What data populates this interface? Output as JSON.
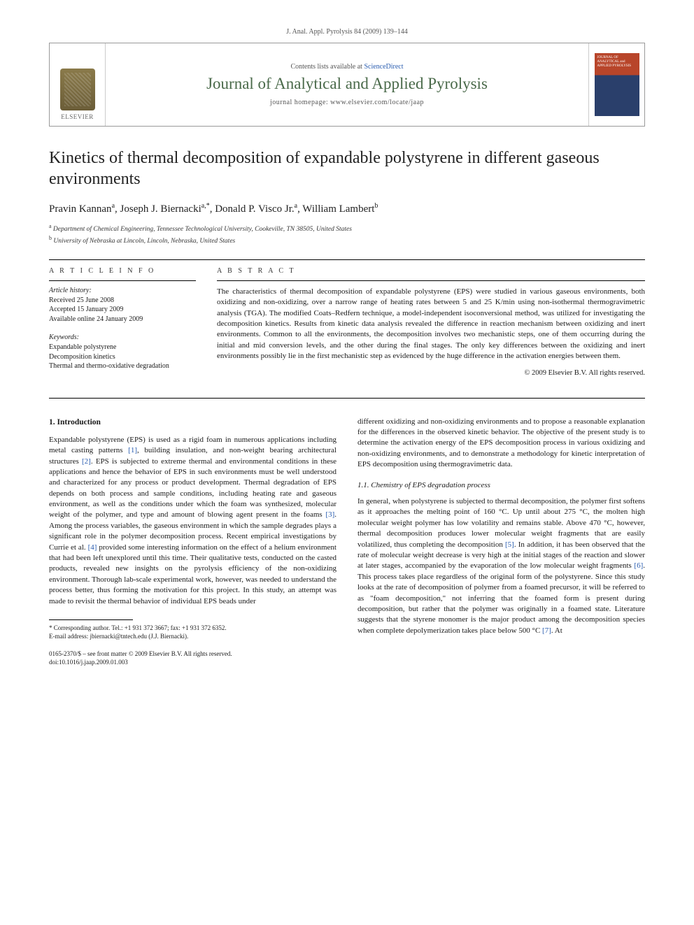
{
  "runningHead": "J. Anal. Appl. Pyrolysis 84 (2009) 139–144",
  "header": {
    "publisher": "ELSEVIER",
    "contentsPrefix": "Contents lists available at ",
    "contentsLink": "ScienceDirect",
    "journalTitle": "Journal of Analytical and Applied Pyrolysis",
    "homepagePrefix": "journal homepage: ",
    "homepageUrl": "www.elsevier.com/locate/jaap"
  },
  "article": {
    "title": "Kinetics of thermal decomposition of expandable polystyrene in different gaseous environments",
    "authorsHtml": "Pravin Kannan<sup>a</sup>, Joseph J. Biernacki<sup>a,*</sup>, Donald P. Visco Jr.<sup>a</sup>, William Lambert<sup>b</sup>",
    "affiliations": [
      "a Department of Chemical Engineering, Tennessee Technological University, Cookeville, TN 38505, United States",
      "b University of Nebraska at Lincoln, Lincoln, Nebraska, United States"
    ]
  },
  "info": {
    "labelInfo": "A R T I C L E   I N F O",
    "historyLabel": "Article history:",
    "history": [
      "Received 25 June 2008",
      "Accepted 15 January 2009",
      "Available online 24 January 2009"
    ],
    "keywordsLabel": "Keywords:",
    "keywords": [
      "Expandable polystyrene",
      "Decomposition kinetics",
      "Thermal and thermo-oxidative degradation"
    ]
  },
  "abstract": {
    "label": "A B S T R A C T",
    "text": "The characteristics of thermal decomposition of expandable polystyrene (EPS) were studied in various gaseous environments, both oxidizing and non-oxidizing, over a narrow range of heating rates between 5 and 25 K/min using non-isothermal thermogravimetric analysis (TGA). The modified Coats–Redfern technique, a model-independent isoconversional method, was utilized for investigating the decomposition kinetics. Results from kinetic data analysis revealed the difference in reaction mechanism between oxidizing and inert environments. Common to all the environments, the decomposition involves two mechanistic steps, one of them occurring during the initial and mid conversion levels, and the other during the final stages. The only key differences between the oxidizing and inert environments possibly lie in the first mechanistic step as evidenced by the huge difference in the activation energies between them.",
    "copyright": "© 2009 Elsevier B.V. All rights reserved."
  },
  "body": {
    "introHeading": "1. Introduction",
    "introPara": "Expandable polystyrene (EPS) is used as a rigid foam in numerous applications including metal casting patterns [1], building insulation, and non-weight bearing architectural structures [2]. EPS is subjected to extreme thermal and environmental conditions in these applications and hence the behavior of EPS in such environments must be well understood and characterized for any process or product development. Thermal degradation of EPS depends on both process and sample conditions, including heating rate and gaseous environment, as well as the conditions under which the foam was synthesized, molecular weight of the polymer, and type and amount of blowing agent present in the foams [3]. Among the process variables, the gaseous environment in which the sample degrades plays a significant role in the polymer decomposition process. Recent empirical investigations by Currie et al. [4] provided some interesting information on the effect of a helium environment that had been left unexplored until this time. Their qualitative tests, conducted on the casted products, revealed new insights on the pyrolysis efficiency of the non-oxidizing environment. Thorough lab-scale experimental work, however, was needed to understand the process better, thus forming the motivation for this project. In this study, an attempt was made to revisit the thermal behavior of individual EPS beads under",
    "col2Para1": "different oxidizing and non-oxidizing environments and to propose a reasonable explanation for the differences in the observed kinetic behavior. The objective of the present study is to determine the activation energy of the EPS decomposition process in various oxidizing and non-oxidizing environments, and to demonstrate a methodology for kinetic interpretation of EPS decomposition using thermogravimetric data.",
    "subHeading": "1.1. Chemistry of EPS degradation process",
    "col2Para2": "In general, when polystyrene is subjected to thermal decomposition, the polymer first softens as it approaches the melting point of 160 °C. Up until about 275 °C, the molten high molecular weight polymer has low volatility and remains stable. Above 470 °C, however, thermal decomposition produces lower molecular weight fragments that are easily volatilized, thus completing the decomposition [5]. In addition, it has been observed that the rate of molecular weight decrease is very high at the initial stages of the reaction and slower at later stages, accompanied by the evaporation of the low molecular weight fragments [6]. This process takes place regardless of the original form of the polystyrene. Since this study looks at the rate of decomposition of polymer from a foamed precursor, it will be referred to as \"foam decomposition,\" not inferring that the foamed form is present during decomposition, but rather that the polymer was originally in a foamed state. Literature suggests that the styrene monomer is the major product among the decomposition species when complete depolymerization takes place below 500 °C [7]. At"
  },
  "footnote": {
    "corr": "* Corresponding author. Tel.: +1 931 372 3667; fax: +1 931 372 6352.",
    "email": "E-mail address: jbiernacki@tntech.edu (J.J. Biernacki)."
  },
  "footer": {
    "line1": "0165-2370/$ – see front matter © 2009 Elsevier B.V. All rights reserved.",
    "line2": "doi:10.1016/j.jaap.2009.01.003"
  },
  "colors": {
    "link": "#2a5db0",
    "journalGreen": "#4a6a4a",
    "coverTop": "#b8452a",
    "coverBottom": "#2a3f6b"
  }
}
